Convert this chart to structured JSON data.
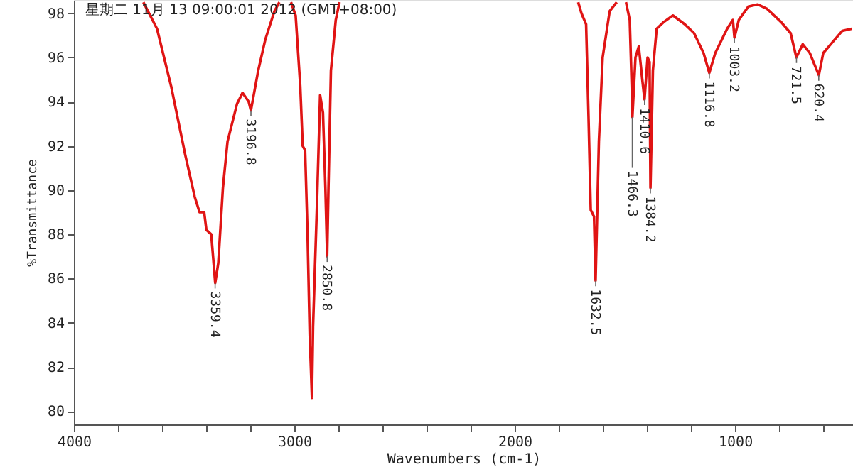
{
  "chart_data": {
    "type": "line",
    "title": "星期二 11月 13 09:00:01 2012 (GMT+08:00)",
    "xlabel": "Wavenumbers (cm-1)",
    "ylabel": "%Transmittance",
    "xlim": [
      4000,
      465
    ],
    "ylim": [
      79.4,
      98.6
    ],
    "xticks": [
      4000,
      {
        "value": 3800,
        "label": null
      },
      {
        "value": 3600,
        "label": null
      },
      {
        "value": 3400,
        "label": null
      },
      {
        "value": 3200,
        "label": null
      },
      3000,
      {
        "value": 2800,
        "label": null
      },
      {
        "value": 2600,
        "label": null
      },
      {
        "value": 2400,
        "label": null
      },
      {
        "value": 2200,
        "label": null
      },
      2000,
      {
        "value": 1800,
        "label": null
      },
      {
        "value": 1600,
        "label": null
      },
      {
        "value": 1400,
        "label": null
      },
      {
        "value": 1200,
        "label": null
      },
      1000,
      {
        "value": 800,
        "label": null
      },
      {
        "value": 600,
        "label": null
      }
    ],
    "yticks": [
      80,
      82,
      84,
      86,
      88,
      90,
      92,
      94,
      96,
      98
    ],
    "grid": false,
    "marker": "none",
    "line_style": "solid",
    "series": [
      {
        "color": "#e01414",
        "x": [
          3685,
          3623,
          3559,
          3495,
          3452,
          3430,
          3409,
          3399,
          3377,
          3359,
          3345,
          3324,
          3303,
          3260,
          3235,
          3207,
          3197,
          3164,
          3132,
          3090,
          3068,
          3040,
          3015,
          2994,
          2973,
          2962,
          2951,
          2940,
          2930,
          2920,
          2915,
          2898,
          2883,
          2870,
          2859,
          2851,
          2845,
          2834,
          2812,
          2795,
          2200,
          1712,
          1697,
          1676,
          1665,
          1655,
          1640,
          1633,
          1618,
          1601,
          1569,
          1537,
          1515,
          1495,
          1478,
          1469,
          1466,
          1452,
          1437,
          1420,
          1411,
          1397,
          1388,
          1384,
          1373,
          1356,
          1324,
          1282,
          1228,
          1186,
          1143,
          1117,
          1090,
          1036,
          1010,
          1003,
          983,
          940,
          898,
          855,
          791,
          748,
          722,
          693,
          661,
          620,
          600,
          557,
          514,
          471
        ],
        "values": [
          98.5,
          97.3,
          94.7,
          91.6,
          89.7,
          89.0,
          89.0,
          88.2,
          88.0,
          85.8,
          86.7,
          90.1,
          92.2,
          93.9,
          94.4,
          94.0,
          93.6,
          95.4,
          96.8,
          98.1,
          98.5,
          null,
          98.5,
          97.9,
          94.7,
          92.0,
          91.8,
          88.0,
          83.4,
          80.6,
          83.8,
          89.1,
          94.3,
          93.5,
          90.1,
          87.0,
          90.1,
          95.4,
          97.7,
          98.5,
          null,
          98.5,
          98.0,
          97.5,
          93.3,
          89.1,
          88.8,
          85.9,
          92.2,
          96.0,
          98.1,
          98.5,
          null,
          98.5,
          97.7,
          94.7,
          93.3,
          96.0,
          96.5,
          94.9,
          94.1,
          96.0,
          95.8,
          90.1,
          95.4,
          97.3,
          97.6,
          97.9,
          97.5,
          97.1,
          96.2,
          95.3,
          96.2,
          97.3,
          97.7,
          96.9,
          97.7,
          98.3,
          98.4,
          98.2,
          97.6,
          97.1,
          96.0,
          96.6,
          96.2,
          95.2,
          96.2,
          96.7,
          97.2,
          97.3
        ]
      }
    ],
    "annotations": [
      {
        "text": "3359.4",
        "x": 3359.4,
        "y": 85.8
      },
      {
        "text": "3196.8",
        "x": 3196.8,
        "y": 93.6
      },
      {
        "text": "2850.8",
        "x": 2850.8,
        "y": 87.0
      },
      {
        "text": "1632.5",
        "x": 1632.5,
        "y": 85.9
      },
      {
        "text": "1466.3",
        "x": 1466.3,
        "y": 93.3
      },
      {
        "text": "1410.6",
        "x": 1410.6,
        "y": 94.1
      },
      {
        "text": "1384.2",
        "x": 1384.2,
        "y": 90.1
      },
      {
        "text": "1116.8",
        "x": 1116.8,
        "y": 95.3
      },
      {
        "text": "1003.2",
        "x": 1003.2,
        "y": 96.9
      },
      {
        "text": "721.5",
        "x": 721.5,
        "y": 96.0
      },
      {
        "text": "620.4",
        "x": 620.4,
        "y": 95.2
      }
    ]
  }
}
